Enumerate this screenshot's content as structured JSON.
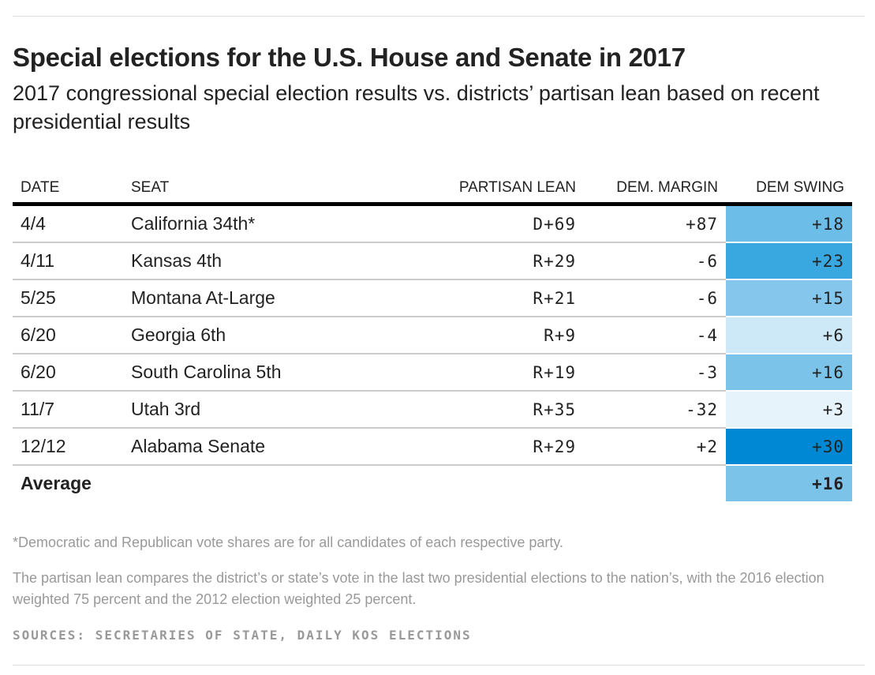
{
  "chart_data": {
    "type": "table",
    "title": "Special elections for the U.S. House and Senate in 2017",
    "subtitle": "2017 congressional special election results vs. districts’ partisan lean based on recent presidential results",
    "columns": [
      "DATE",
      "SEAT",
      "PARTISAN LEAN",
      "DEM. MARGIN",
      "DEM SWING"
    ],
    "rows": [
      {
        "date": "4/4",
        "seat": "California 34th*",
        "lean": "D+69",
        "margin": "+87",
        "swing": "+18",
        "color": "#6dbde9"
      },
      {
        "date": "4/11",
        "seat": "Kansas 4th",
        "lean": "R+29",
        "margin": "-6",
        "swing": "+23",
        "color": "#3aa8e0"
      },
      {
        "date": "5/25",
        "seat": "Montana At-Large",
        "lean": "R+21",
        "margin": "-6",
        "swing": "+15",
        "color": "#84c6ec"
      },
      {
        "date": "6/20",
        "seat": "Georgia 6th",
        "lean": "R+9",
        "margin": "-4",
        "swing": "+6",
        "color": "#cde9f7"
      },
      {
        "date": "6/20",
        "seat": "South Carolina 5th",
        "lean": "R+19",
        "margin": "-3",
        "swing": "+16",
        "color": "#7cc3ea"
      },
      {
        "date": "11/7",
        "seat": "Utah 3rd",
        "lean": "R+35",
        "margin": "-32",
        "swing": "+3",
        "color": "#e6f3fb"
      },
      {
        "date": "12/12",
        "seat": "Alabama Senate",
        "lean": "R+29",
        "margin": "+2",
        "swing": "+30",
        "color": "#0088d4"
      }
    ],
    "average": {
      "label": "Average",
      "swing": "+16",
      "color": "#7cc3ea"
    }
  },
  "footnotes": {
    "asterisk": "*Democratic and Republican vote shares are for all candidates of each respective party.",
    "lean": "The partisan lean compares the district’s or state’s vote in the last two presidential elections to the nation’s, with the 2016 election weighted 75 percent and the 2012 election weighted 25 percent.",
    "sources": "SOURCES: SECRETARIES OF STATE, DAILY KOS ELECTIONS"
  }
}
